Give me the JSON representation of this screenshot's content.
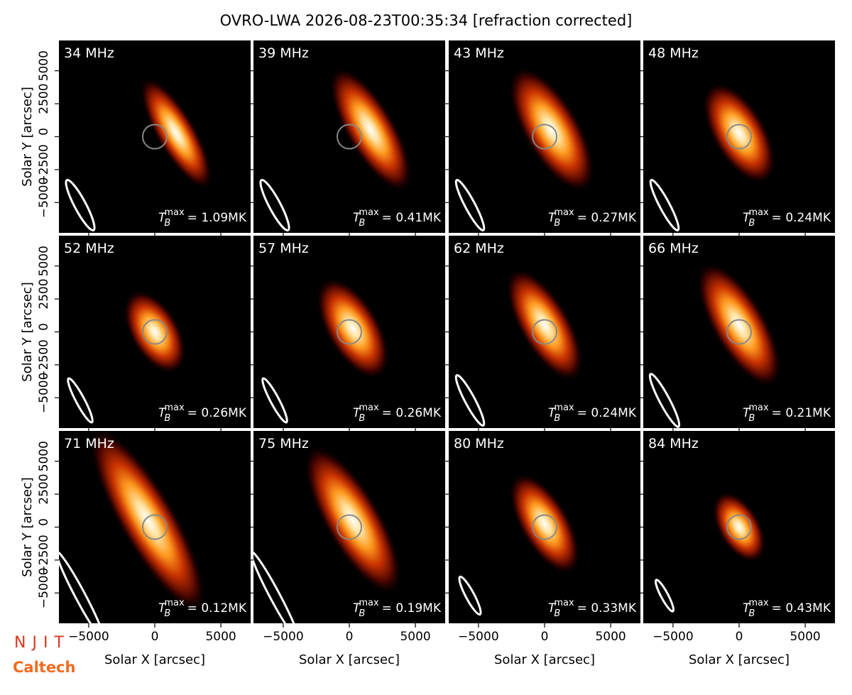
{
  "chart_data": {
    "type": "image_grid",
    "title": "OVRO-LWA 2026-08-23T00:35:34 [refraction corrected]",
    "xlabel": "Solar X [arcsec]",
    "ylabel": "Solar Y [arcsec]",
    "xlim": [
      -7250,
      7250
    ],
    "ylim": [
      -7300,
      7300
    ],
    "xticks": [
      {
        "value": -5000,
        "label": "−5000"
      },
      0,
      5000
    ],
    "yticks": [
      {
        "value": -5000,
        "label": "−5000"
      },
      {
        "value": -2500,
        "label": "−2500"
      },
      0,
      2500,
      5000
    ],
    "tmax_symbol": {
      "base": "T",
      "sub": "B",
      "sup": "max"
    },
    "panels": [
      {
        "label": "34 MHz",
        "tmax_label": "= 1.09MK"
      },
      {
        "label": "39 MHz",
        "tmax_label": "= 0.41MK"
      },
      {
        "label": "43 MHz",
        "tmax_label": "= 0.27MK"
      },
      {
        "label": "48 MHz",
        "tmax_label": "= 0.24MK"
      },
      {
        "label": "52 MHz",
        "tmax_label": "= 0.26MK"
      },
      {
        "label": "57 MHz",
        "tmax_label": "= 0.26MK"
      },
      {
        "label": "62 MHz",
        "tmax_label": "= 0.24MK"
      },
      {
        "label": "66 MHz",
        "tmax_label": "= 0.21MK"
      },
      {
        "label": "71 MHz",
        "tmax_label": "= 0.12MK"
      },
      {
        "label": "75 MHz",
        "tmax_label": "= 0.19MK"
      },
      {
        "label": "80 MHz",
        "tmax_label": "= 0.33MK"
      },
      {
        "label": "84 MHz",
        "tmax_label": "= 0.43MK"
      }
    ],
    "logos": {
      "njit": "NJIT",
      "caltech": "Caltech"
    }
  }
}
